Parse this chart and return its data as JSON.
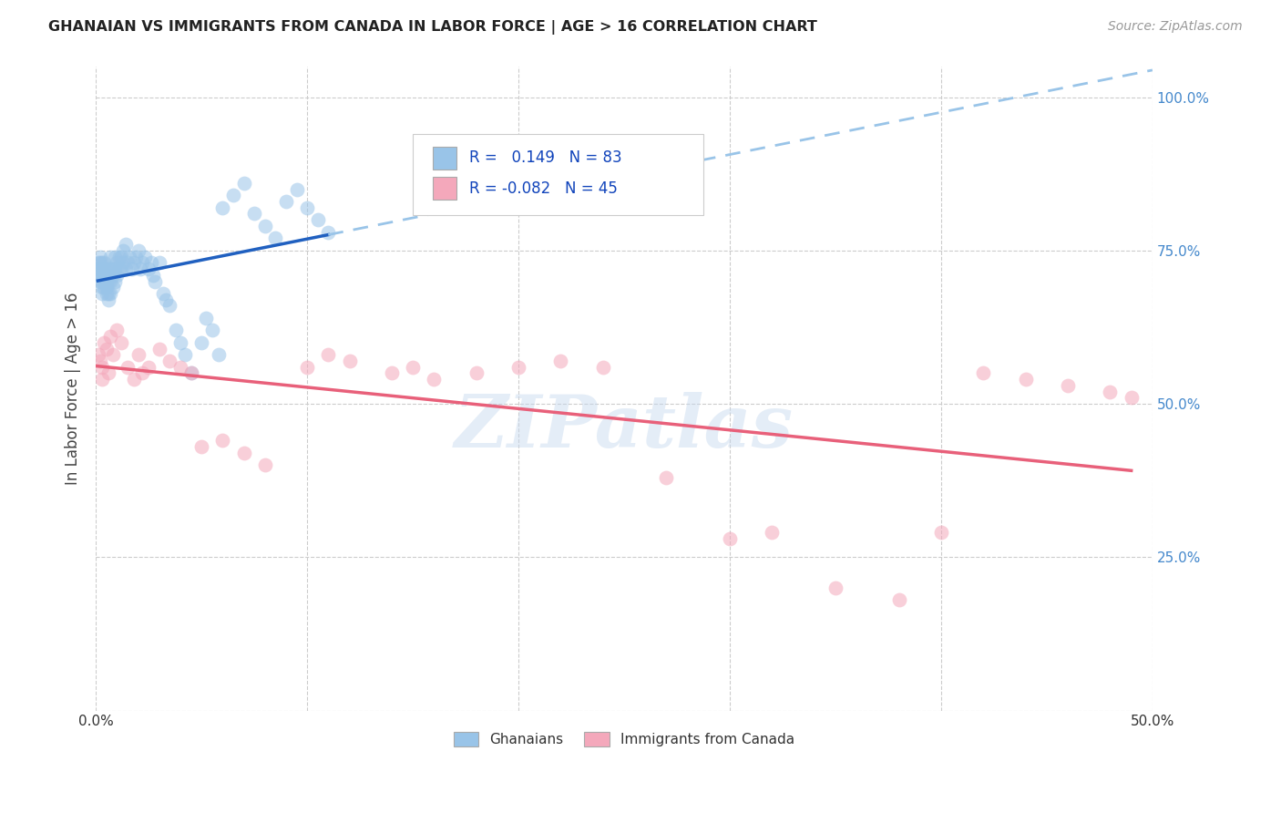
{
  "title": "GHANAIAN VS IMMIGRANTS FROM CANADA IN LABOR FORCE | AGE > 16 CORRELATION CHART",
  "source": "Source: ZipAtlas.com",
  "ylabel": "In Labor Force | Age > 16",
  "xlim": [
    0.0,
    0.5
  ],
  "ylim": [
    0.0,
    1.05
  ],
  "xticks": [
    0.0,
    0.1,
    0.2,
    0.3,
    0.4,
    0.5
  ],
  "xticklabels": [
    "0.0%",
    "",
    "",
    "",
    "",
    "50.0%"
  ],
  "yticks": [
    0.0,
    0.25,
    0.5,
    0.75,
    1.0
  ],
  "legend_R_blue": "0.149",
  "legend_N_blue": "83",
  "legend_R_pink": "-0.082",
  "legend_N_pink": "45",
  "blue_scatter_color": "#99C4E8",
  "pink_scatter_color": "#F4A8BB",
  "blue_line_color": "#2060C0",
  "pink_line_color": "#E8607A",
  "dashed_line_color": "#99C4E8",
  "watermark": "ZIPatlas",
  "blue_scatter_x": [
    0.001,
    0.001,
    0.001,
    0.002,
    0.002,
    0.002,
    0.002,
    0.002,
    0.003,
    0.003,
    0.003,
    0.003,
    0.003,
    0.003,
    0.004,
    0.004,
    0.004,
    0.004,
    0.004,
    0.005,
    0.005,
    0.005,
    0.005,
    0.006,
    0.006,
    0.006,
    0.006,
    0.007,
    0.007,
    0.007,
    0.007,
    0.008,
    0.008,
    0.008,
    0.009,
    0.009,
    0.009,
    0.01,
    0.01,
    0.011,
    0.011,
    0.012,
    0.012,
    0.013,
    0.013,
    0.014,
    0.014,
    0.015,
    0.016,
    0.017,
    0.018,
    0.019,
    0.02,
    0.021,
    0.022,
    0.023,
    0.025,
    0.026,
    0.027,
    0.028,
    0.03,
    0.032,
    0.033,
    0.035,
    0.038,
    0.04,
    0.042,
    0.045,
    0.05,
    0.052,
    0.055,
    0.058,
    0.06,
    0.065,
    0.07,
    0.075,
    0.08,
    0.085,
    0.09,
    0.095,
    0.1,
    0.105,
    0.11
  ],
  "blue_scatter_y": [
    0.71,
    0.72,
    0.73,
    0.7,
    0.71,
    0.72,
    0.73,
    0.74,
    0.68,
    0.69,
    0.7,
    0.71,
    0.72,
    0.73,
    0.69,
    0.7,
    0.71,
    0.72,
    0.73,
    0.68,
    0.69,
    0.7,
    0.71,
    0.67,
    0.68,
    0.7,
    0.72,
    0.68,
    0.7,
    0.72,
    0.74,
    0.69,
    0.71,
    0.72,
    0.7,
    0.72,
    0.74,
    0.71,
    0.73,
    0.72,
    0.74,
    0.72,
    0.74,
    0.73,
    0.75,
    0.72,
    0.76,
    0.73,
    0.74,
    0.72,
    0.73,
    0.74,
    0.75,
    0.72,
    0.73,
    0.74,
    0.72,
    0.73,
    0.71,
    0.7,
    0.73,
    0.68,
    0.67,
    0.66,
    0.62,
    0.6,
    0.58,
    0.55,
    0.6,
    0.64,
    0.62,
    0.58,
    0.82,
    0.84,
    0.86,
    0.81,
    0.79,
    0.77,
    0.83,
    0.85,
    0.82,
    0.8,
    0.78
  ],
  "pink_scatter_x": [
    0.001,
    0.002,
    0.003,
    0.003,
    0.004,
    0.005,
    0.006,
    0.007,
    0.008,
    0.01,
    0.012,
    0.015,
    0.018,
    0.02,
    0.022,
    0.025,
    0.03,
    0.035,
    0.04,
    0.045,
    0.05,
    0.06,
    0.07,
    0.08,
    0.1,
    0.11,
    0.12,
    0.14,
    0.15,
    0.16,
    0.18,
    0.2,
    0.22,
    0.24,
    0.27,
    0.3,
    0.32,
    0.35,
    0.38,
    0.4,
    0.42,
    0.44,
    0.46,
    0.48,
    0.49
  ],
  "pink_scatter_y": [
    0.58,
    0.57,
    0.54,
    0.56,
    0.6,
    0.59,
    0.55,
    0.61,
    0.58,
    0.62,
    0.6,
    0.56,
    0.54,
    0.58,
    0.55,
    0.56,
    0.59,
    0.57,
    0.56,
    0.55,
    0.43,
    0.44,
    0.42,
    0.4,
    0.56,
    0.58,
    0.57,
    0.55,
    0.56,
    0.54,
    0.55,
    0.56,
    0.57,
    0.56,
    0.38,
    0.28,
    0.29,
    0.2,
    0.18,
    0.29,
    0.55,
    0.54,
    0.53,
    0.52,
    0.51
  ],
  "background_color": "#FFFFFF",
  "grid_color": "#CCCCCC"
}
